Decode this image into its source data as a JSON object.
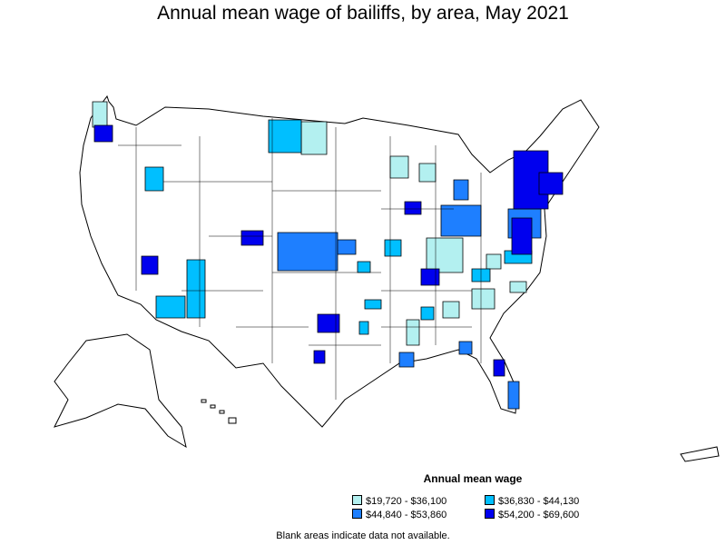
{
  "title": "Annual mean wage of bailiffs, by area, May 2021",
  "legend": {
    "title": "Annual mean wage",
    "items": [
      {
        "label": "$19,720 - $36,100",
        "color": "#b3f0f0"
      },
      {
        "label": "$36,830 - $44,130",
        "color": "#00bfff"
      },
      {
        "label": "$44,840 - $53,860",
        "color": "#1e7fff"
      },
      {
        "label": "$54,200 - $69,600",
        "color": "#0000ee"
      }
    ]
  },
  "note": "Blank areas indicate data not available.",
  "colors": {
    "border": "#000000",
    "blank": "#ffffff"
  }
}
